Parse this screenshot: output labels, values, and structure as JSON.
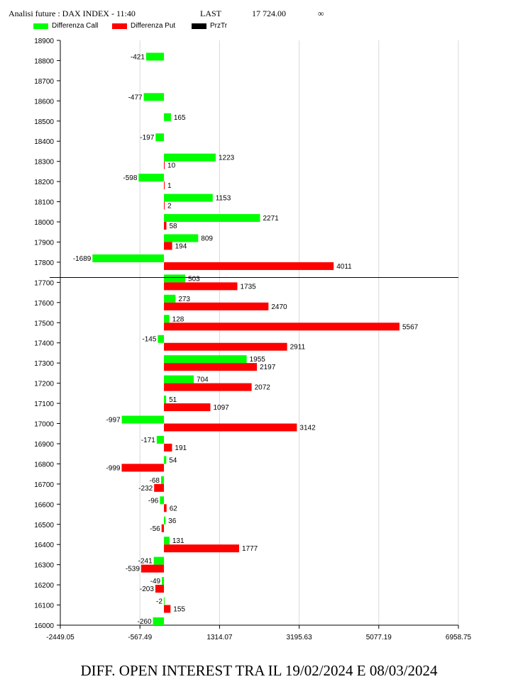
{
  "header": {
    "title": "Analisi future : DAX INDEX - 11:40",
    "last_label": "LAST",
    "last_value": "17 724.00",
    "infinity": "∞"
  },
  "footer": {
    "caption": "DIFF. OPEN INTEREST TRA IL 19/02/2024 E 08/03/2024"
  },
  "colors": {
    "call": "#00ff00",
    "put": "#ff0000",
    "przTr": "#000000"
  },
  "chart_data": {
    "type": "bar",
    "orientation": "horizontal",
    "legend": [
      "Differenza Call",
      "Differenza Put",
      "PrzTr"
    ],
    "legend_placement": "top-left",
    "xlim": [
      -2449.05,
      6958.75
    ],
    "x_ticks": [
      "-2449.05",
      "-567.49",
      "1314.07",
      "3195.63",
      "5077.19",
      "6958.75"
    ],
    "x_tick_values": [
      -2449.05,
      -567.49,
      1314.07,
      3195.63,
      5077.19,
      6958.75
    ],
    "ylim": [
      16000,
      18900
    ],
    "y_ticks": [
      "16000",
      "16100",
      "16200",
      "16300",
      "16400",
      "16500",
      "16600",
      "16700",
      "16800",
      "16900",
      "17000",
      "17100",
      "17200",
      "17300",
      "17400",
      "17500",
      "17600",
      "17700",
      "17800",
      "17900",
      "18000",
      "18100",
      "18200",
      "18300",
      "18400",
      "18500",
      "18600",
      "18700",
      "18800",
      "18900"
    ],
    "grid": "vertical",
    "przTr": 17724,
    "series": [
      {
        "name": "Differenza Call",
        "points": [
          {
            "strike": 18800,
            "value": -421
          },
          {
            "strike": 18600,
            "value": -477
          },
          {
            "strike": 18500,
            "value": 165
          },
          {
            "strike": 18400,
            "value": -197
          },
          {
            "strike": 18300,
            "value": 1223
          },
          {
            "strike": 18200,
            "value": -598
          },
          {
            "strike": 18100,
            "value": 1153
          },
          {
            "strike": 18000,
            "value": 2271
          },
          {
            "strike": 17900,
            "value": 809
          },
          {
            "strike": 17800,
            "value": -1689
          },
          {
            "strike": 17700,
            "value": 503
          },
          {
            "strike": 17600,
            "value": 273
          },
          {
            "strike": 17500,
            "value": 128
          },
          {
            "strike": 17400,
            "value": -145
          },
          {
            "strike": 17300,
            "value": 1955
          },
          {
            "strike": 17200,
            "value": 704
          },
          {
            "strike": 17100,
            "value": 51
          },
          {
            "strike": 17000,
            "value": -997
          },
          {
            "strike": 16900,
            "value": -171
          },
          {
            "strike": 16800,
            "value": 54
          },
          {
            "strike": 16700,
            "value": -68
          },
          {
            "strike": 16600,
            "value": -96
          },
          {
            "strike": 16500,
            "value": 36
          },
          {
            "strike": 16400,
            "value": 131
          },
          {
            "strike": 16300,
            "value": -241
          },
          {
            "strike": 16200,
            "value": -49
          },
          {
            "strike": 16100,
            "value": -2
          },
          {
            "strike": 16000,
            "value": -260
          }
        ]
      },
      {
        "name": "Differenza Put",
        "points": [
          {
            "strike": 18300,
            "value": 10
          },
          {
            "strike": 18200,
            "value": 1
          },
          {
            "strike": 18100,
            "value": 2
          },
          {
            "strike": 18000,
            "value": 58
          },
          {
            "strike": 17900,
            "value": 194
          },
          {
            "strike": 17800,
            "value": 4011
          },
          {
            "strike": 17700,
            "value": 1735
          },
          {
            "strike": 17600,
            "value": 2470
          },
          {
            "strike": 17500,
            "value": 5567
          },
          {
            "strike": 17400,
            "value": 2911
          },
          {
            "strike": 17300,
            "value": 2197
          },
          {
            "strike": 17200,
            "value": 2072
          },
          {
            "strike": 17100,
            "value": 1097
          },
          {
            "strike": 17000,
            "value": 3142
          },
          {
            "strike": 16900,
            "value": 191
          },
          {
            "strike": 16800,
            "value": -999
          },
          {
            "strike": 16700,
            "value": -232
          },
          {
            "strike": 16600,
            "value": 62
          },
          {
            "strike": 16500,
            "value": -56
          },
          {
            "strike": 16400,
            "value": 1777
          },
          {
            "strike": 16300,
            "value": -539
          },
          {
            "strike": 16200,
            "value": -203
          },
          {
            "strike": 16100,
            "value": 155
          }
        ]
      }
    ]
  }
}
